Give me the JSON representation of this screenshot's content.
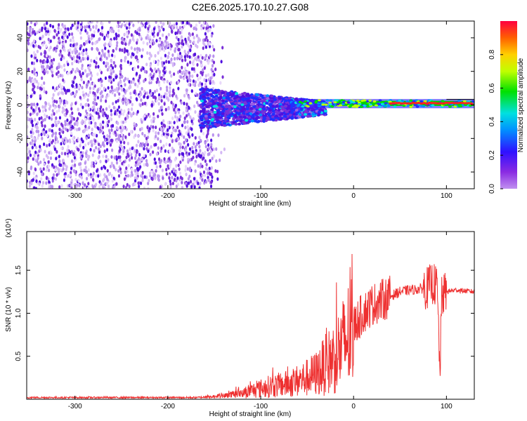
{
  "title": "C2E6.2025.170.10.27.G08",
  "chart_data": [
    {
      "type": "heatmap",
      "title": "C2E6.2025.170.10.27.G08",
      "xlabel": "Height of straight line (km)",
      "ylabel": "Frequency (Hz)",
      "xlim": [
        -352,
        130
      ],
      "ylim": [
        -50,
        50
      ],
      "xticks": [
        -300,
        -200,
        -100,
        0,
        100
      ],
      "yticks": [
        -40,
        -20,
        0,
        20,
        40
      ],
      "colorbar": {
        "label": "Normalized spectral amplitude",
        "range": [
          0,
          1
        ],
        "ticks": [
          0.0,
          0.2,
          0.4,
          0.6,
          0.8
        ],
        "colormap": "rainbow (violet → blue → cyan → green → yellow → orange → red)"
      },
      "description_points": [
        {
          "x_range": [
            -352,
            -150
          ],
          "frequency_range": [
            -50,
            50
          ],
          "amplitude": 0.05
        },
        {
          "x_range": [
            -165,
            -30
          ],
          "frequency_range": [
            -15,
            10
          ],
          "amplitude": 0.25
        },
        {
          "x_range": [
            -60,
            130
          ],
          "frequency_range": [
            -2,
            4
          ],
          "amplitude": 0.5
        },
        {
          "x_range": [
            -20,
            130
          ],
          "frequency_range": [
            0,
            2
          ],
          "amplitude": 0.95
        }
      ]
    },
    {
      "type": "line",
      "xlabel": "Height of straight line (km)",
      "ylabel": "SNR (10 * v/v)",
      "y_multiplier": "(x10⁴)",
      "xlim": [
        -352,
        130
      ],
      "ylim": [
        0,
        1.95
      ],
      "xticks": [
        -300,
        -200,
        -100,
        0,
        100
      ],
      "yticks": [
        0.5,
        1.0,
        1.5
      ],
      "color": "#ee3030",
      "series": [
        {
          "x": [
            -352,
            -300,
            -250,
            -200,
            -170,
            -150,
            -130,
            -110,
            -90,
            -70,
            -50,
            -40,
            -30,
            -20,
            -10,
            0,
            10,
            20,
            30,
            40,
            50,
            60,
            70,
            80,
            85,
            90,
            93,
            95,
            100,
            110,
            120,
            130
          ],
          "y": [
            0.02,
            0.02,
            0.02,
            0.02,
            0.02,
            0.03,
            0.05,
            0.1,
            0.15,
            0.18,
            0.25,
            0.3,
            0.4,
            0.5,
            0.65,
            0.85,
            1.0,
            1.1,
            1.15,
            1.2,
            1.25,
            1.27,
            1.28,
            1.3,
            1.35,
            1.3,
            0.3,
            1.2,
            1.25,
            1.27,
            1.26,
            1.25
          ]
        }
      ]
    }
  ]
}
